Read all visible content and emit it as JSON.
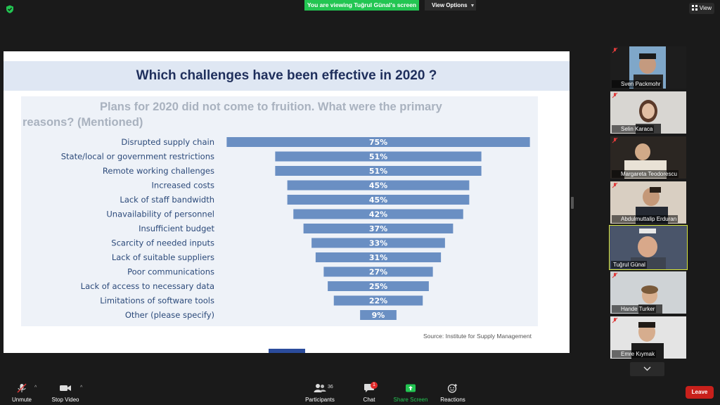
{
  "banner": {
    "viewing": "You are viewing Tuğrul Günal's screen"
  },
  "view_options": {
    "label": "View Options"
  },
  "view_button": {
    "label": "View"
  },
  "slide": {
    "title": "Which challenges have been effective in 2020 ?",
    "chart_heading_line1": "Plans for 2020 did not come to fruition. What were the primary",
    "chart_heading_line2": "reasons? (Mentioned)",
    "source": "Source: Institute for Supply Management"
  },
  "chart_data": {
    "type": "bar",
    "orientation": "horizontal-centered",
    "title": "Plans for 2020 did not come to fruition. What were the primary reasons? (Mentioned)",
    "categories": [
      "Disrupted supply chain",
      "State/local or government restrictions",
      "Remote working challenges",
      "Increased costs",
      "Lack of staff bandwidth",
      "Unavailability of personnel",
      "Insufficient budget",
      "Scarcity of needed inputs",
      "Lack of suitable suppliers",
      "Poor communications",
      "Lack of access to necessary data",
      "Limitations of software tools",
      "Other (please specify)"
    ],
    "values": [
      75,
      51,
      51,
      45,
      45,
      42,
      37,
      33,
      31,
      27,
      25,
      22,
      9
    ],
    "value_labels": [
      "75%",
      "51%",
      "51%",
      "45%",
      "45%",
      "42%",
      "37%",
      "33%",
      "31%",
      "27%",
      "25%",
      "22%",
      "9%"
    ],
    "bar_color": "#6a8fc3",
    "grid": false
  },
  "participants": [
    {
      "name": "Sven Packmohr",
      "muted": true
    },
    {
      "name": "Selin Karaca",
      "muted": true
    },
    {
      "name": "Margareta Teodorescu",
      "muted": true
    },
    {
      "name": "Abdulmuttalip Erduran",
      "muted": true
    },
    {
      "name": "Tuğrul Günal",
      "muted": false,
      "active": true
    },
    {
      "name": "Hande Turker",
      "muted": true
    },
    {
      "name": "Emre Kıymak",
      "muted": true
    }
  ],
  "toolbar": {
    "unmute": "Unmute",
    "stop_video": "Stop Video",
    "participants": "Participants",
    "participants_count": "36",
    "chat": "Chat",
    "chat_badge": "1",
    "share_screen": "Share Screen",
    "reactions": "Reactions",
    "leave": "Leave"
  },
  "colors": {
    "accent_green": "#23c552",
    "leave_red": "#c8201b",
    "active_speaker": "#d8e63b",
    "slide_title": "#1f2f5c"
  }
}
